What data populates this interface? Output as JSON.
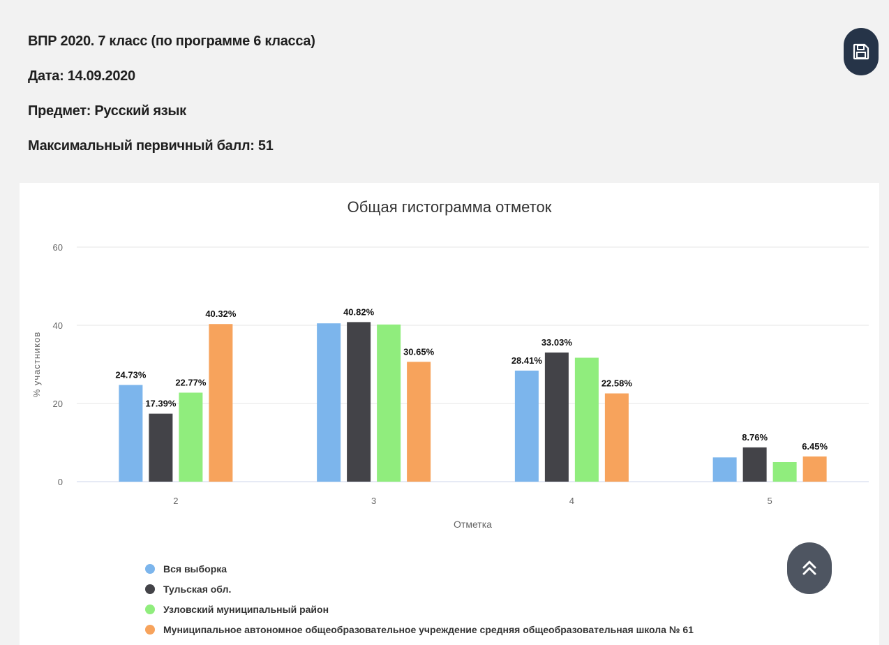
{
  "header": {
    "line1": "ВПР 2020. 7 класс (по программе 6 класса)",
    "line2": "Дата: 14.09.2020",
    "line3": "Предмет: Русский язык",
    "line4": "Максимальный первичный балл: 51"
  },
  "buttons": {
    "save_icon": "floppy-disk-icon",
    "scroll_top_icon": "double-chevron-up-icon"
  },
  "chart_data": {
    "type": "bar",
    "title": "Общая гистограмма отметок",
    "xlabel": "Отметка",
    "ylabel": "% участников",
    "ylim": [
      0,
      60
    ],
    "yticks": [
      0,
      20,
      40,
      60
    ],
    "grid": true,
    "legend_position": "bottom-left",
    "categories": [
      "2",
      "3",
      "4",
      "5"
    ],
    "series": [
      {
        "name": "Вся выборка",
        "color": "#7cb5ec",
        "values": [
          24.73,
          40.5,
          28.41,
          6.2
        ],
        "labels": [
          "24.73%",
          "",
          "28.41%",
          ""
        ]
      },
      {
        "name": "Тульская обл.",
        "color": "#434348",
        "values": [
          17.39,
          40.82,
          33.03,
          8.76
        ],
        "labels": [
          "17.39%",
          "40.82%",
          "33.03%",
          "8.76%"
        ]
      },
      {
        "name": "Узловский муниципальный район",
        "color": "#90ed7d",
        "values": [
          22.77,
          40.2,
          31.7,
          5.0
        ],
        "labels": [
          "22.77%",
          "",
          "",
          ""
        ]
      },
      {
        "name": "Муниципальное автономное общеобразовательное учреждение средняя общеобразовательная школа № 61",
        "color": "#f7a35c",
        "values": [
          40.32,
          30.65,
          22.58,
          6.45
        ],
        "labels": [
          "40.32%",
          "30.65%",
          "22.58%",
          "6.45%"
        ]
      }
    ]
  }
}
